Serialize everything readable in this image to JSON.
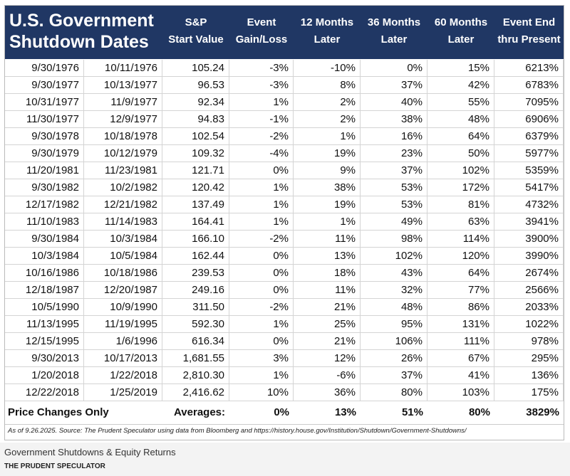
{
  "table": {
    "title": [
      "U.S. Government",
      "Shutdown Dates"
    ],
    "columns": [
      [
        "S&P",
        "Start Value"
      ],
      [
        "Event",
        "Gain/Loss"
      ],
      [
        "12 Months",
        "Later"
      ],
      [
        "36 Months",
        "Later"
      ],
      [
        "60 Months",
        "Later"
      ],
      [
        "Event End",
        "thru Present"
      ]
    ],
    "rows": [
      [
        "9/30/1976",
        "10/11/1976",
        "105.24",
        "-3%",
        "-10%",
        "0%",
        "15%",
        "6213%"
      ],
      [
        "9/30/1977",
        "10/13/1977",
        "96.53",
        "-3%",
        "8%",
        "37%",
        "42%",
        "6783%"
      ],
      [
        "10/31/1977",
        "11/9/1977",
        "92.34",
        "1%",
        "2%",
        "40%",
        "55%",
        "7095%"
      ],
      [
        "11/30/1977",
        "12/9/1977",
        "94.83",
        "-1%",
        "2%",
        "38%",
        "48%",
        "6906%"
      ],
      [
        "9/30/1978",
        "10/18/1978",
        "102.54",
        "-2%",
        "1%",
        "16%",
        "64%",
        "6379%"
      ],
      [
        "9/30/1979",
        "10/12/1979",
        "109.32",
        "-4%",
        "19%",
        "23%",
        "50%",
        "5977%"
      ],
      [
        "11/20/1981",
        "11/23/1981",
        "121.71",
        "0%",
        "9%",
        "37%",
        "102%",
        "5359%"
      ],
      [
        "9/30/1982",
        "10/2/1982",
        "120.42",
        "1%",
        "38%",
        "53%",
        "172%",
        "5417%"
      ],
      [
        "12/17/1982",
        "12/21/1982",
        "137.49",
        "1%",
        "19%",
        "53%",
        "81%",
        "4732%"
      ],
      [
        "11/10/1983",
        "11/14/1983",
        "164.41",
        "1%",
        "1%",
        "49%",
        "63%",
        "3941%"
      ],
      [
        "9/30/1984",
        "10/3/1984",
        "166.10",
        "-2%",
        "11%",
        "98%",
        "114%",
        "3900%"
      ],
      [
        "10/3/1984",
        "10/5/1984",
        "162.44",
        "0%",
        "13%",
        "102%",
        "120%",
        "3990%"
      ],
      [
        "10/16/1986",
        "10/18/1986",
        "239.53",
        "0%",
        "18%",
        "43%",
        "64%",
        "2674%"
      ],
      [
        "12/18/1987",
        "12/20/1987",
        "249.16",
        "0%",
        "11%",
        "32%",
        "77%",
        "2566%"
      ],
      [
        "10/5/1990",
        "10/9/1990",
        "311.50",
        "-2%",
        "21%",
        "48%",
        "86%",
        "2033%"
      ],
      [
        "11/13/1995",
        "11/19/1995",
        "592.30",
        "1%",
        "25%",
        "95%",
        "131%",
        "1022%"
      ],
      [
        "12/15/1995",
        "1/6/1996",
        "616.34",
        "0%",
        "21%",
        "106%",
        "111%",
        "978%"
      ],
      [
        "9/30/2013",
        "10/17/2013",
        "1,681.55",
        "3%",
        "12%",
        "26%",
        "67%",
        "295%"
      ],
      [
        "1/20/2018",
        "1/22/2018",
        "2,810.30",
        "1%",
        "-6%",
        "37%",
        "41%",
        "136%"
      ],
      [
        "12/22/2018",
        "1/25/2019",
        "2,416.62",
        "10%",
        "36%",
        "80%",
        "103%",
        "175%"
      ]
    ],
    "summary": {
      "label": "Price Changes Only",
      "averages_label": "Averages:",
      "values": [
        "0%",
        "13%",
        "51%",
        "80%",
        "3829%"
      ]
    },
    "footnote": "As of 9.26.2025. Source: The Prudent Speculator using data from Bloomberg and https://history.house.gov/Institution/Shutdown/Government-Shutdowns/"
  },
  "caption": {
    "title": "Government Shutdowns & Equity Returns",
    "source": "THE PRUDENT SPECULATOR"
  }
}
